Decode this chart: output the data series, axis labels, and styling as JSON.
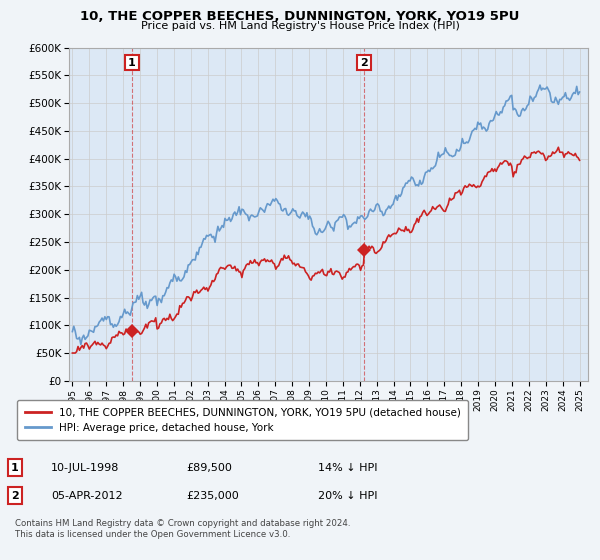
{
  "title": "10, THE COPPER BEECHES, DUNNINGTON, YORK, YO19 5PU",
  "subtitle": "Price paid vs. HM Land Registry's House Price Index (HPI)",
  "legend_line1": "10, THE COPPER BEECHES, DUNNINGTON, YORK, YO19 5PU (detached house)",
  "legend_line2": "HPI: Average price, detached house, York",
  "annotation1_date": "10-JUL-1998",
  "annotation1_price": "£89,500",
  "annotation1_hpi": "14% ↓ HPI",
  "annotation2_date": "05-APR-2012",
  "annotation2_price": "£235,000",
  "annotation2_hpi": "20% ↓ HPI",
  "footer": "Contains HM Land Registry data © Crown copyright and database right 2024.\nThis data is licensed under the Open Government Licence v3.0.",
  "ylim": [
    0,
    600000
  ],
  "yticks": [
    0,
    50000,
    100000,
    150000,
    200000,
    250000,
    300000,
    350000,
    400000,
    450000,
    500000,
    550000,
    600000
  ],
  "hpi_color": "#6699cc",
  "sale_color": "#cc2222",
  "grid_color": "#cccccc",
  "bg_color": "#f0f4f8",
  "plot_bg_color": "#dce8f5",
  "sale1_x": 1998.52,
  "sale1_y": 89500,
  "sale2_x": 2012.25,
  "sale2_y": 235000,
  "xmin": 1994.8,
  "xmax": 2025.5
}
